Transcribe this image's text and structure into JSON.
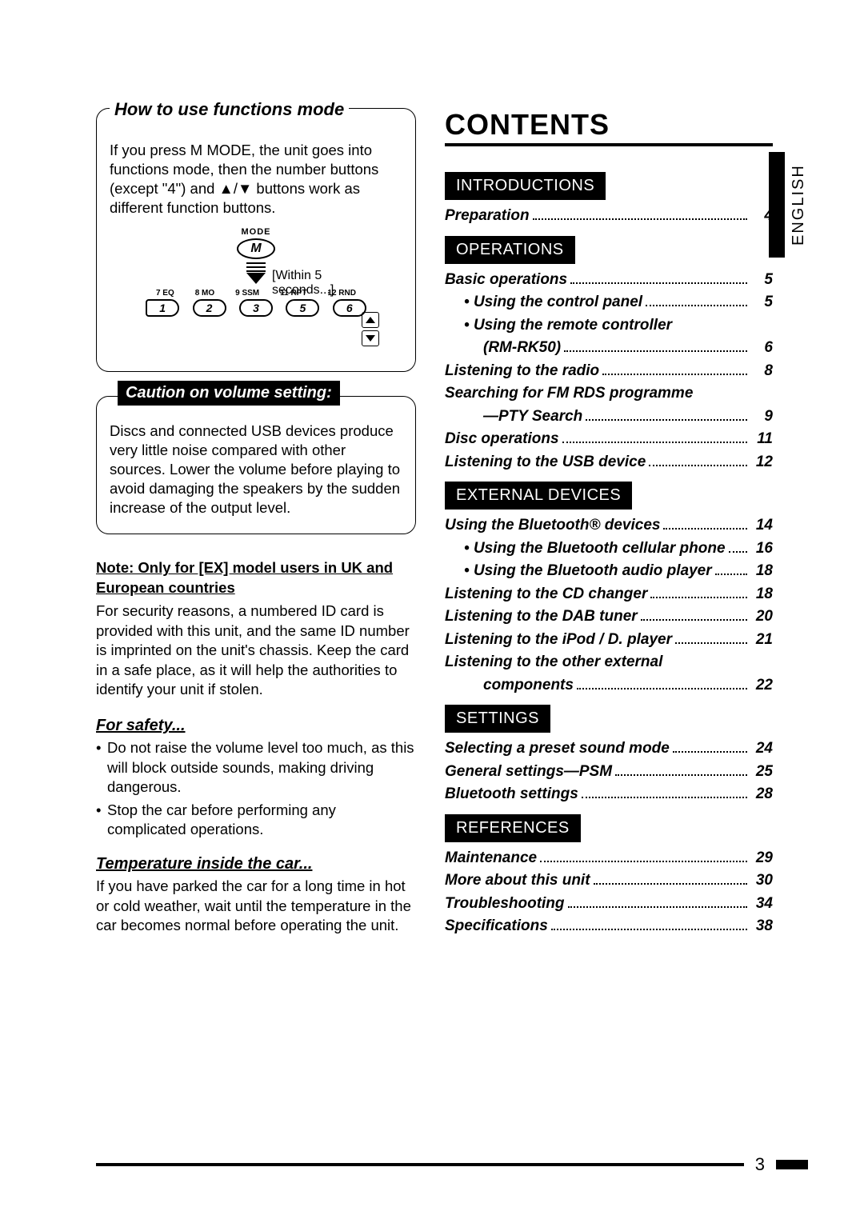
{
  "left": {
    "functions_mode": {
      "title": "How to use functions mode",
      "body": "If you press M MODE, the unit goes into functions mode, then the number buttons (except \"4\") and ▲/▼ buttons work as different function buttons.",
      "diagram": {
        "mode_label": "MODE",
        "m_letter": "M",
        "within_text": "[Within 5 seconds...]",
        "tiny_labels": [
          "7  EQ",
          "8  MO",
          "9  SSM",
          "11  RPT",
          "12  RND"
        ],
        "numbers": [
          "1",
          "2",
          "3",
          "5",
          "6"
        ]
      }
    },
    "caution": {
      "title": "Caution on volume setting:",
      "body": "Discs and connected USB devices produce very little noise compared with other sources. Lower the volume before playing to avoid damaging the speakers by the sudden increase of the output level."
    },
    "note": {
      "heading": "Note: Only for [EX] model users in UK and European countries",
      "body": "For security reasons, a numbered ID card is provided with this unit, and the same ID number is imprinted on the unit's chassis. Keep the card in a safe place, as it will help the authorities to identify your unit if stolen."
    },
    "safety": {
      "heading": "For safety...",
      "items": [
        "Do not raise the volume level too much, as this will block outside sounds, making driving dangerous.",
        "Stop the car before performing any complicated operations."
      ]
    },
    "temperature": {
      "heading": "Temperature inside the car...",
      "body": "If you have parked the car for a long time in hot or cold weather, wait until the temperature in the car becomes normal before operating the unit."
    }
  },
  "right": {
    "title": "CONTENTS",
    "sections": [
      {
        "head": "INTRODUCTIONS",
        "items": [
          {
            "label": "Preparation",
            "page": "4"
          }
        ]
      },
      {
        "head": "OPERATIONS",
        "items": [
          {
            "label": "Basic operations",
            "page": "5"
          },
          {
            "label": "Using the control panel",
            "page": "5",
            "sub": true,
            "bullet": true
          },
          {
            "label": "Using the remote controller",
            "sub": true,
            "bullet": true,
            "nopage": true
          },
          {
            "label": "(RM-RK50)",
            "page": "6",
            "sub2": true
          },
          {
            "label": "Listening to the radio",
            "page": "8"
          },
          {
            "label": "Searching for FM RDS programme",
            "nopage": true
          },
          {
            "label": "—PTY Search",
            "page": "9",
            "sub2": true
          },
          {
            "label": "Disc operations",
            "page": "11"
          },
          {
            "label": "Listening to the USB device",
            "page": "12"
          }
        ]
      },
      {
        "head": "EXTERNAL DEVICES",
        "items": [
          {
            "label": "Using the Bluetooth® devices",
            "page": "14"
          },
          {
            "label": "Using the Bluetooth cellular phone",
            "page": "16",
            "sub": true,
            "bullet": true
          },
          {
            "label": "Using the Bluetooth audio player",
            "page": "18",
            "sub": true,
            "bullet": true
          },
          {
            "label": "Listening to the CD changer",
            "page": "18"
          },
          {
            "label": "Listening to the DAB tuner",
            "page": "20"
          },
          {
            "label": "Listening to the iPod / D. player",
            "page": "21"
          },
          {
            "label": "Listening to the other external",
            "nopage": true
          },
          {
            "label": "components",
            "page": "22",
            "sub2": true
          }
        ]
      },
      {
        "head": "SETTINGS",
        "items": [
          {
            "label": "Selecting a preset sound mode",
            "page": "24"
          },
          {
            "label": "General settings—PSM",
            "page": "25"
          },
          {
            "label": "Bluetooth settings",
            "page": "28"
          }
        ]
      },
      {
        "head": "REFERENCES",
        "items": [
          {
            "label": "Maintenance",
            "page": "29"
          },
          {
            "label": "More about this unit",
            "page": "30"
          },
          {
            "label": "Troubleshooting",
            "page": "34"
          },
          {
            "label": "Specifications",
            "page": "38"
          }
        ]
      }
    ]
  },
  "side_label": "ENGLISH",
  "page_number": "3",
  "colors": {
    "text": "#000000",
    "background": "#ffffff",
    "rule": "#000000"
  }
}
